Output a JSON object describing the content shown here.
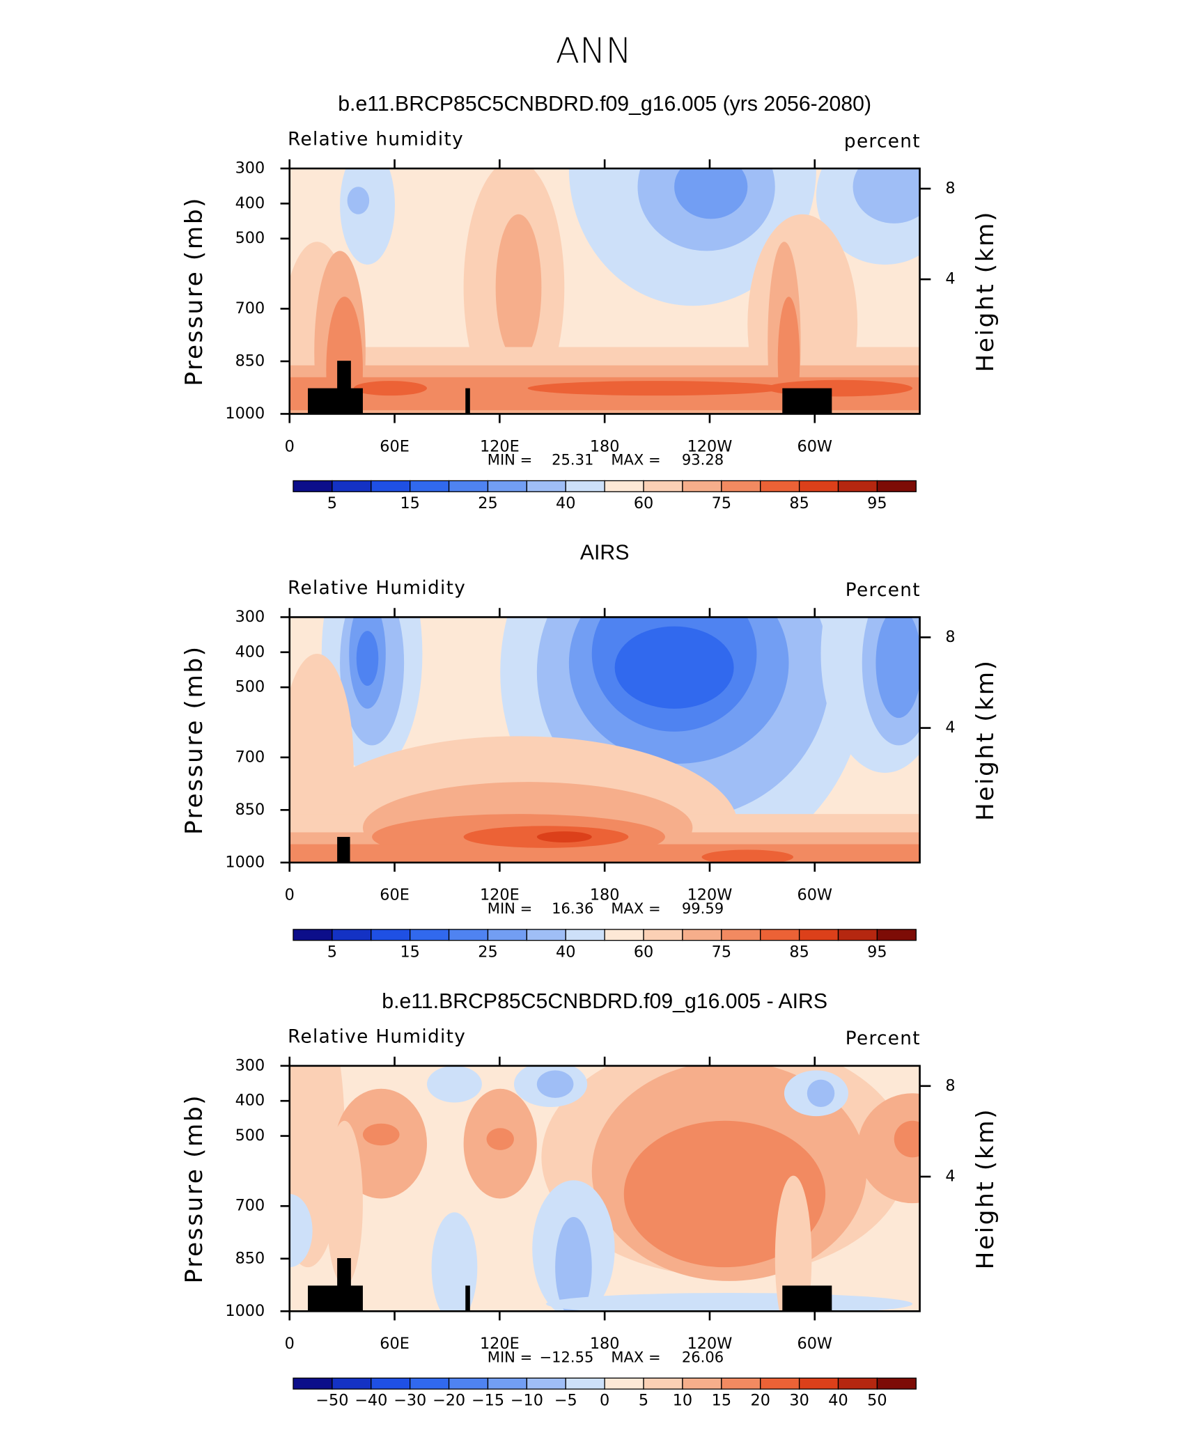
{
  "title": "ANN",
  "chart_data": [
    {
      "type": "contour",
      "title": "b.e11.BRCP85C5CNBDRD.f09_g16.005 (yrs 2056-2080)",
      "subtitle_left": "Relative humidity",
      "subtitle_right": "percent",
      "xlim": [
        0,
        360
      ],
      "xticks": [
        0,
        {
          "value": 60,
          "label": "60E"
        },
        {
          "value": 120,
          "label": "120E"
        },
        180,
        {
          "value": 240,
          "label": "120W"
        },
        {
          "value": 300,
          "label": "60W"
        }
      ],
      "ylim": [
        1000,
        300
      ],
      "yticks": [
        300,
        400,
        500,
        700,
        850,
        1000
      ],
      "ylabel": "Pressure (mb)",
      "y2lim": [
        -1.94,
        8.89
      ],
      "y2ticks": [
        4,
        8
      ],
      "y2label": "Height (km)",
      "stats": [
        {
          "label": "MIN =",
          "value": 25.31
        },
        {
          "label": "MAX =",
          "value": 93.28
        }
      ],
      "colorbar_labels": [
        5,
        15,
        25,
        40,
        60,
        75,
        85,
        95
      ],
      "colors": [
        "#0c0e8a",
        "#1432c4",
        "#1f50e4",
        "#3169ee",
        "#4f83f1",
        "#729ef3",
        "#9fbef6",
        "#cde0f9",
        "#fde8d6",
        "#fbd0b5",
        "#f6ae8b",
        "#f28a61",
        "#ec6236",
        "#dc401a",
        "#b52710",
        "#7d0c06"
      ]
    },
    {
      "type": "contour",
      "title": "AIRS",
      "subtitle_left": "Relative Humidity",
      "subtitle_right": "Percent",
      "xlim": [
        0,
        360
      ],
      "xticks": [
        0,
        {
          "value": 60,
          "label": "60E"
        },
        {
          "value": 120,
          "label": "120E"
        },
        180,
        {
          "value": 240,
          "label": "120W"
        },
        {
          "value": 300,
          "label": "60W"
        }
      ],
      "ylim": [
        1000,
        300
      ],
      "yticks": [
        300,
        400,
        500,
        700,
        850,
        1000
      ],
      "ylabel": "Pressure (mb)",
      "y2lim": [
        -1.94,
        8.89
      ],
      "y2ticks": [
        4,
        8
      ],
      "y2label": "Height (km)",
      "stats": [
        {
          "label": "MIN =",
          "value": 16.36
        },
        {
          "label": "MAX =",
          "value": 99.59
        }
      ],
      "colorbar_labels": [
        5,
        15,
        25,
        40,
        60,
        75,
        85,
        95
      ],
      "colors": [
        "#0c0e8a",
        "#1432c4",
        "#1f50e4",
        "#3169ee",
        "#4f83f1",
        "#729ef3",
        "#9fbef6",
        "#cde0f9",
        "#fde8d6",
        "#fbd0b5",
        "#f6ae8b",
        "#f28a61",
        "#ec6236",
        "#dc401a",
        "#b52710",
        "#7d0c06"
      ]
    },
    {
      "type": "contour",
      "title": "b.e11.BRCP85C5CNBDRD.f09_g16.005 - AIRS",
      "subtitle_left": "Relative Humidity",
      "subtitle_right": "Percent",
      "xlim": [
        0,
        360
      ],
      "xticks": [
        0,
        {
          "value": 60,
          "label": "60E"
        },
        {
          "value": 120,
          "label": "120E"
        },
        180,
        {
          "value": 240,
          "label": "120W"
        },
        {
          "value": 300,
          "label": "60W"
        }
      ],
      "ylim": [
        1000,
        300
      ],
      "yticks": [
        300,
        400,
        500,
        700,
        850,
        1000
      ],
      "ylabel": "Pressure (mb)",
      "y2lim": [
        -1.94,
        8.89
      ],
      "y2ticks": [
        4,
        8
      ],
      "y2label": "Height (km)",
      "stats": [
        {
          "label": "MIN =",
          "value": -12.55,
          "value_label": "−12.55"
        },
        {
          "label": "MAX =",
          "value": 26.06
        }
      ],
      "colorbar_labels": [
        {
          "value": -50,
          "label": "−50"
        },
        {
          "value": -40,
          "label": "−40"
        },
        {
          "value": -30,
          "label": "−30"
        },
        {
          "value": -20,
          "label": "−20"
        },
        {
          "value": -15,
          "label": "−15"
        },
        {
          "value": -10,
          "label": "−10"
        },
        {
          "value": -5,
          "label": "−5"
        },
        0,
        5,
        10,
        15,
        20,
        30,
        40,
        50
      ],
      "colors": [
        "#0c0e8a",
        "#1432c4",
        "#1f50e4",
        "#3169ee",
        "#4f83f1",
        "#729ef3",
        "#9fbef6",
        "#cde0f9",
        "#fde8d6",
        "#fbd0b5",
        "#f6ae8b",
        "#f28a61",
        "#ec6236",
        "#dc401a",
        "#b52710",
        "#7d0c06"
      ]
    }
  ]
}
